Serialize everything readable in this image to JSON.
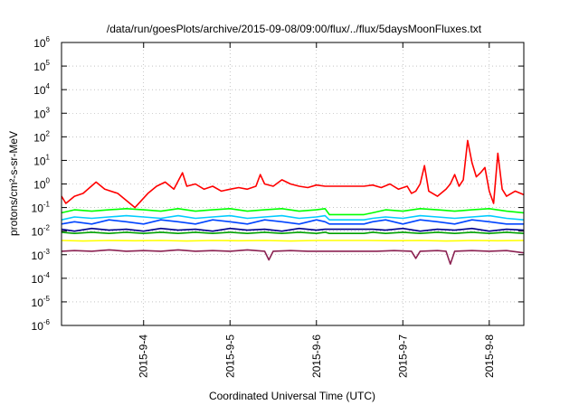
{
  "chart_data": {
    "type": "line",
    "title": "/data/run/goesPlots/archive/2015-09-08/09:00/flux/../flux/5daysMoonFluxes.txt",
    "xlabel": "Coordinated Universal Time (UTC)",
    "ylabel": "protons/cm²-s-sr-MeV",
    "y_scale": "log",
    "ylim": [
      1e-06,
      1000000.0
    ],
    "y_ticks": [
      {
        "base": "10",
        "exp": "6"
      },
      {
        "base": "10",
        "exp": "5"
      },
      {
        "base": "10",
        "exp": "4"
      },
      {
        "base": "10",
        "exp": "3"
      },
      {
        "base": "10",
        "exp": "2"
      },
      {
        "base": "10",
        "exp": "1"
      },
      {
        "base": "10",
        "exp": "0"
      },
      {
        "base": "10",
        "exp": "-1"
      },
      {
        "base": "10",
        "exp": "-2"
      },
      {
        "base": "10",
        "exp": "-3"
      },
      {
        "base": "10",
        "exp": "-4"
      },
      {
        "base": "10",
        "exp": "-5"
      },
      {
        "base": "10",
        "exp": "-6"
      }
    ],
    "xlim": [
      3.05,
      8.4
    ],
    "x_ticks": [
      {
        "label": "2015-9-4",
        "day": 4
      },
      {
        "label": "2015-9-5",
        "day": 5
      },
      {
        "label": "2015-9-6",
        "day": 6
      },
      {
        "label": "2015-9-7",
        "day": 7
      },
      {
        "label": "2015-9-8",
        "day": 8
      }
    ],
    "grid": true,
    "series": [
      {
        "color": "#ff0000",
        "x": [
          3.05,
          3.1,
          3.2,
          3.3,
          3.45,
          3.55,
          3.7,
          3.9,
          4.05,
          4.15,
          4.25,
          4.35,
          4.45,
          4.5,
          4.6,
          4.7,
          4.8,
          4.9,
          5.0,
          5.1,
          5.2,
          5.3,
          5.35,
          5.4,
          5.5,
          5.6,
          5.7,
          5.8,
          5.9,
          6.0,
          6.1,
          6.15,
          6.35,
          6.55,
          6.65,
          6.75,
          6.85,
          6.95,
          7.05,
          7.1,
          7.15,
          7.2,
          7.25,
          7.3,
          7.4,
          7.5,
          7.55,
          7.6,
          7.65,
          7.7,
          7.75,
          7.8,
          7.85,
          7.9,
          7.95,
          8.0,
          8.05,
          8.1,
          8.15,
          8.2,
          8.3,
          8.4
        ],
        "y": [
          0.3,
          0.15,
          0.3,
          0.4,
          1.2,
          0.6,
          0.4,
          0.1,
          0.4,
          0.8,
          1.2,
          0.6,
          3.0,
          0.8,
          1.0,
          0.6,
          0.8,
          0.5,
          0.6,
          0.7,
          0.6,
          0.8,
          2.5,
          1.0,
          0.8,
          1.5,
          1.0,
          0.8,
          0.7,
          0.9,
          0.8,
          0.8,
          0.8,
          0.8,
          0.9,
          0.7,
          1.0,
          0.6,
          0.8,
          0.4,
          0.5,
          1.0,
          6.0,
          0.5,
          0.3,
          0.6,
          1.0,
          2.5,
          0.8,
          1.5,
          70,
          8.0,
          2.0,
          3.0,
          5.0,
          0.5,
          0.15,
          20,
          0.6,
          0.3,
          0.5,
          0.35
        ]
      },
      {
        "color": "#00ff00",
        "x": [
          3.05,
          3.2,
          3.4,
          3.6,
          3.8,
          4.0,
          4.2,
          4.4,
          4.6,
          4.8,
          5.0,
          5.2,
          5.4,
          5.6,
          5.8,
          6.0,
          6.1,
          6.15,
          6.35,
          6.55,
          6.65,
          6.8,
          7.0,
          7.2,
          7.4,
          7.6,
          7.8,
          8.0,
          8.2,
          8.4
        ],
        "y": [
          0.06,
          0.08,
          0.07,
          0.08,
          0.09,
          0.08,
          0.07,
          0.09,
          0.07,
          0.08,
          0.09,
          0.07,
          0.08,
          0.09,
          0.07,
          0.08,
          0.09,
          0.05,
          0.05,
          0.05,
          0.06,
          0.08,
          0.07,
          0.09,
          0.08,
          0.07,
          0.08,
          0.09,
          0.07,
          0.06
        ]
      },
      {
        "color": "#00ccff",
        "x": [
          3.05,
          3.2,
          3.4,
          3.6,
          3.8,
          4.0,
          4.2,
          4.4,
          4.6,
          4.8,
          5.0,
          5.2,
          5.4,
          5.6,
          5.8,
          6.0,
          6.1,
          6.15,
          6.35,
          6.55,
          6.65,
          6.8,
          7.0,
          7.2,
          7.4,
          7.6,
          7.8,
          8.0,
          8.2,
          8.4
        ],
        "y": [
          0.03,
          0.04,
          0.035,
          0.04,
          0.045,
          0.04,
          0.035,
          0.045,
          0.035,
          0.04,
          0.045,
          0.035,
          0.04,
          0.045,
          0.035,
          0.04,
          0.045,
          0.03,
          0.03,
          0.03,
          0.035,
          0.04,
          0.035,
          0.045,
          0.04,
          0.035,
          0.04,
          0.045,
          0.035,
          0.03
        ]
      },
      {
        "color": "#0044ff",
        "x": [
          3.05,
          3.2,
          3.4,
          3.6,
          3.8,
          4.0,
          4.2,
          4.4,
          4.6,
          4.8,
          5.0,
          5.2,
          5.4,
          5.6,
          5.8,
          6.0,
          6.1,
          6.15,
          6.35,
          6.55,
          6.65,
          6.8,
          7.0,
          7.2,
          7.4,
          7.6,
          7.8,
          8.0,
          8.2,
          8.4
        ],
        "y": [
          0.02,
          0.025,
          0.02,
          0.03,
          0.025,
          0.02,
          0.03,
          0.025,
          0.02,
          0.03,
          0.025,
          0.02,
          0.03,
          0.025,
          0.02,
          0.03,
          0.025,
          0.02,
          0.02,
          0.02,
          0.025,
          0.03,
          0.02,
          0.03,
          0.025,
          0.02,
          0.03,
          0.025,
          0.02,
          0.02
        ]
      },
      {
        "color": "#00008b",
        "x": [
          3.05,
          3.2,
          3.4,
          3.6,
          3.8,
          4.0,
          4.2,
          4.4,
          4.6,
          4.8,
          5.0,
          5.2,
          5.4,
          5.6,
          5.8,
          6.0,
          6.1,
          6.15,
          6.35,
          6.55,
          6.65,
          6.8,
          7.0,
          7.2,
          7.4,
          7.6,
          7.8,
          8.0,
          8.2,
          8.4
        ],
        "y": [
          0.012,
          0.01,
          0.013,
          0.011,
          0.012,
          0.01,
          0.013,
          0.011,
          0.012,
          0.01,
          0.013,
          0.011,
          0.012,
          0.01,
          0.013,
          0.011,
          0.012,
          0.012,
          0.012,
          0.012,
          0.012,
          0.011,
          0.013,
          0.01,
          0.012,
          0.011,
          0.013,
          0.01,
          0.012,
          0.011
        ]
      },
      {
        "color": "#00a000",
        "x": [
          3.05,
          3.2,
          3.4,
          3.6,
          3.8,
          4.0,
          4.2,
          4.4,
          4.6,
          4.8,
          5.0,
          5.2,
          5.4,
          5.6,
          5.8,
          6.0,
          6.1,
          6.15,
          6.35,
          6.55,
          6.65,
          6.8,
          7.0,
          7.2,
          7.4,
          7.6,
          7.8,
          8.0,
          8.2,
          8.4
        ],
        "y": [
          0.009,
          0.008,
          0.009,
          0.008,
          0.009,
          0.008,
          0.009,
          0.008,
          0.009,
          0.008,
          0.009,
          0.008,
          0.009,
          0.008,
          0.009,
          0.008,
          0.009,
          0.008,
          0.008,
          0.008,
          0.009,
          0.008,
          0.009,
          0.008,
          0.009,
          0.008,
          0.009,
          0.008,
          0.009,
          0.008
        ]
      },
      {
        "color": "#ffff00",
        "x": [
          3.05,
          3.3,
          3.6,
          3.9,
          4.2,
          4.5,
          4.8,
          5.1,
          5.4,
          5.7,
          6.0,
          6.3,
          6.6,
          6.9,
          7.2,
          7.5,
          7.8,
          8.1,
          8.4
        ],
        "y": [
          0.004,
          0.0038,
          0.004,
          0.0039,
          0.004,
          0.0038,
          0.004,
          0.0039,
          0.004,
          0.0038,
          0.004,
          0.004,
          0.004,
          0.0039,
          0.004,
          0.0038,
          0.004,
          0.0039,
          0.004
        ]
      },
      {
        "color": "#8b2252",
        "x": [
          3.05,
          3.2,
          3.4,
          3.6,
          3.8,
          4.0,
          4.2,
          4.4,
          4.6,
          4.8,
          5.0,
          5.2,
          5.4,
          5.45,
          5.5,
          5.7,
          5.9,
          6.1,
          6.3,
          6.5,
          6.7,
          6.9,
          7.1,
          7.15,
          7.2,
          7.4,
          7.5,
          7.55,
          7.6,
          7.8,
          8.0,
          8.2,
          8.4
        ],
        "y": [
          0.0014,
          0.0015,
          0.0014,
          0.0016,
          0.0014,
          0.0015,
          0.0014,
          0.0016,
          0.0014,
          0.0015,
          0.0014,
          0.0016,
          0.0014,
          0.0006,
          0.0014,
          0.0015,
          0.0014,
          0.0014,
          0.0014,
          0.0014,
          0.0014,
          0.0015,
          0.0014,
          0.0007,
          0.0014,
          0.0015,
          0.0014,
          0.0004,
          0.0014,
          0.0015,
          0.0014,
          0.0015,
          0.0012
        ]
      }
    ]
  }
}
